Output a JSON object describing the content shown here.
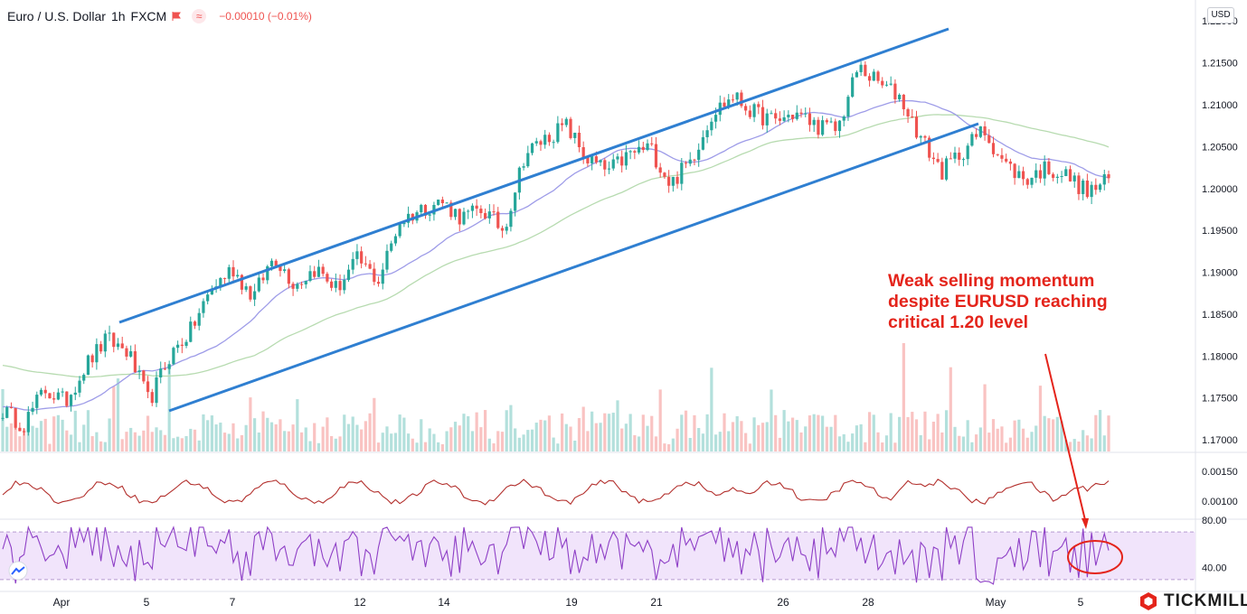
{
  "header": {
    "symbol": "Euro / U.S. Dollar",
    "interval": "1h",
    "broker": "FXCM",
    "change": "−0.00010 (−0.01%)",
    "currency": "USD"
  },
  "annotation": {
    "lines": [
      "Weak selling momentum",
      "despite EURUSD reaching",
      "critical 1.20 level"
    ],
    "color": "#e4241b"
  },
  "brand": {
    "name": "TICKMILL",
    "icon": "tickmill-logo-icon"
  },
  "colors": {
    "up": "#26a69a",
    "down": "#ef5350",
    "channel": "#2f7fd1",
    "ma_fast": "#9e9ce8",
    "ma_slow": "#b7dbb0",
    "atr": "#b3302d",
    "rsi": "#8e3fc6",
    "rsi_band": "#f1e4fb"
  },
  "chart_data": [
    {
      "type": "candlestick",
      "title": "Euro / U.S. Dollar, 1h, FXCM",
      "x_tick_labels": [
        "Apr",
        "5",
        "7",
        "12",
        "14",
        "19",
        "21",
        "26",
        "28",
        "May",
        "5"
      ],
      "y_tick_labels": [
        "1.22000",
        "1.21500",
        "1.21000",
        "1.20500",
        "1.20000",
        "1.19500",
        "1.19000",
        "1.18500",
        "1.18000",
        "1.17500",
        "1.17000"
      ],
      "ylim": [
        1.1685,
        1.2225
      ],
      "price_path": [
        [
          "Apr 1",
          1.1735
        ],
        [
          "Apr 2",
          1.1718
        ],
        [
          "Apr 3",
          1.176
        ],
        [
          "Apr 4",
          1.1745
        ],
        [
          "Apr 5",
          1.179
        ],
        [
          "Apr 5b",
          1.182
        ],
        [
          "Apr 6",
          1.1805
        ],
        [
          "Apr 6b",
          1.1745
        ],
        [
          "Apr 7",
          1.18
        ],
        [
          "Apr 7b",
          1.183
        ],
        [
          "Apr 8",
          1.188
        ],
        [
          "Apr 8b",
          1.1905
        ],
        [
          "Apr 9",
          1.187
        ],
        [
          "Apr 11",
          1.192
        ],
        [
          "Apr 12",
          1.1885
        ],
        [
          "Apr 12b",
          1.1905
        ],
        [
          "Apr 13",
          1.188
        ],
        [
          "Apr 13b",
          1.1915
        ],
        [
          "Apr 14",
          1.189
        ],
        [
          "Apr 14b",
          1.196
        ],
        [
          "Apr 15",
          1.1975
        ],
        [
          "Apr 16",
          1.1985
        ],
        [
          "Apr 17",
          1.1965
        ],
        [
          "Apr 18",
          1.1975
        ],
        [
          "Apr 19",
          1.195
        ],
        [
          "Apr 19b",
          1.204
        ],
        [
          "Apr 20",
          1.206
        ],
        [
          "Apr 20b",
          1.2075
        ],
        [
          "Apr 21",
          1.2035
        ],
        [
          "Apr 22",
          1.202
        ],
        [
          "Apr 22b",
          1.204
        ],
        [
          "Apr 23",
          1.205
        ],
        [
          "Apr 23b",
          1.2005
        ],
        [
          "Apr 24",
          1.2035
        ],
        [
          "Apr 25",
          1.209
        ],
        [
          "Apr 26",
          1.211
        ],
        [
          "Apr 26b",
          1.209
        ],
        [
          "Apr 27",
          1.208
        ],
        [
          "Apr 27b",
          1.209
        ],
        [
          "Apr 28",
          1.2075
        ],
        [
          "Apr 28b",
          1.207
        ],
        [
          "Apr 29",
          1.2145
        ],
        [
          "Apr 29b",
          1.2125
        ],
        [
          "Apr 30",
          1.211
        ],
        [
          "Apr 30b",
          1.206
        ],
        [
          "May 1",
          1.202
        ],
        [
          "May 2",
          1.2045
        ],
        [
          "May 3",
          1.207
        ],
        [
          "May 3b",
          1.203
        ],
        [
          "May 4",
          1.201
        ],
        [
          "May 4b",
          1.2025
        ],
        [
          "May 5",
          1.2015
        ],
        [
          "May 5b",
          1.1995
        ],
        [
          "May 6",
          1.201
        ]
      ],
      "channel_upper": [
        [
          "Apr 3",
          1.185
        ],
        [
          "May 1",
          1.221
        ]
      ],
      "channel_lower": [
        [
          "Apr 6",
          1.174
        ],
        [
          "May 1",
          1.2095
        ]
      ],
      "grid": false
    },
    {
      "type": "line",
      "title": "",
      "y_tick_labels": [
        "0.00150",
        "0.00100"
      ],
      "ylim": [
        0.0007,
        0.0018
      ]
    },
    {
      "type": "line",
      "title": "",
      "y_tick_labels": [
        "80.00",
        "40.00"
      ],
      "band": [
        30,
        70
      ],
      "ylim": [
        20,
        80
      ]
    }
  ]
}
